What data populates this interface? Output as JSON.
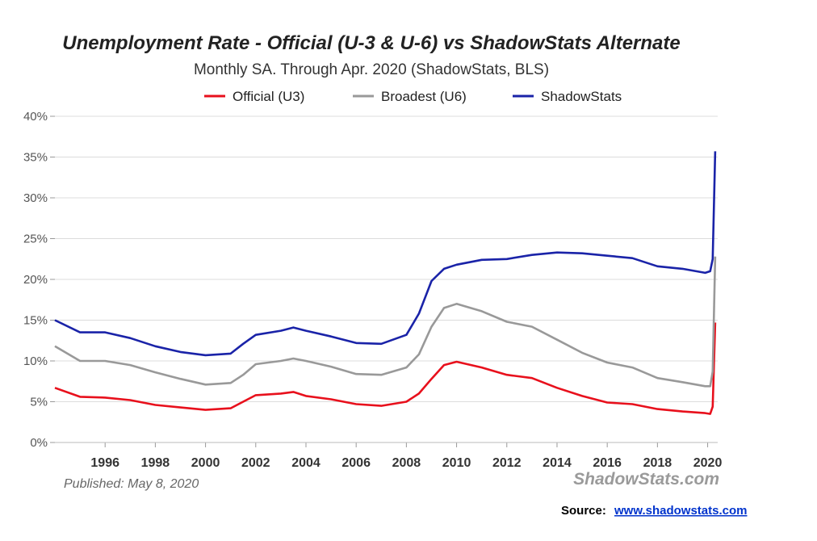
{
  "title": "Unemployment Rate - Official (U-3 & U-6) vs ShadowStats Alternate",
  "subtitle": "Monthly SA. Through Apr. 2020  (ShadowStats, BLS)",
  "published": "Published: May 8, 2020",
  "watermark": "ShadowStats.com",
  "source": {
    "label": "Source:",
    "link": "www.shadowstats.com"
  },
  "chart_data": {
    "type": "line",
    "title": "Unemployment Rate - Official (U-3 & U-6) vs ShadowStats Alternate",
    "subtitle": "Monthly SA. Through Apr. 2020  (ShadowStats, BLS)",
    "xlabel": "",
    "ylabel": "",
    "xlim": [
      1994.0,
      2020.4
    ],
    "ylim": [
      0,
      40
    ],
    "y_ticks": [
      "0%",
      "5%",
      "10%",
      "15%",
      "20%",
      "25%",
      "30%",
      "35%",
      "40%"
    ],
    "x_ticks": [
      "1996",
      "1998",
      "2000",
      "2002",
      "2004",
      "2006",
      "2008",
      "2010",
      "2012",
      "2014",
      "2016",
      "2018",
      "2020"
    ],
    "grid": true,
    "legend_position": "top-center",
    "series": [
      {
        "name": "Official (U3)",
        "color": "#e8101c",
        "points": [
          [
            1994.0,
            6.7
          ],
          [
            1995.0,
            5.6
          ],
          [
            1996.0,
            5.5
          ],
          [
            1997.0,
            5.2
          ],
          [
            1998.0,
            4.6
          ],
          [
            1999.0,
            4.3
          ],
          [
            2000.0,
            4.0
          ],
          [
            2001.0,
            4.2
          ],
          [
            2001.5,
            5.0
          ],
          [
            2002.0,
            5.8
          ],
          [
            2003.0,
            6.0
          ],
          [
            2003.5,
            6.2
          ],
          [
            2004.0,
            5.7
          ],
          [
            2005.0,
            5.3
          ],
          [
            2006.0,
            4.7
          ],
          [
            2007.0,
            4.5
          ],
          [
            2008.0,
            5.0
          ],
          [
            2008.5,
            6.0
          ],
          [
            2009.0,
            7.8
          ],
          [
            2009.5,
            9.5
          ],
          [
            2010.0,
            9.9
          ],
          [
            2011.0,
            9.2
          ],
          [
            2012.0,
            8.3
          ],
          [
            2013.0,
            7.9
          ],
          [
            2014.0,
            6.7
          ],
          [
            2015.0,
            5.7
          ],
          [
            2016.0,
            4.9
          ],
          [
            2017.0,
            4.7
          ],
          [
            2018.0,
            4.1
          ],
          [
            2019.0,
            3.8
          ],
          [
            2019.9,
            3.6
          ],
          [
            2020.1,
            3.5
          ],
          [
            2020.2,
            4.4
          ],
          [
            2020.3,
            14.7
          ]
        ]
      },
      {
        "name": "Broadest (U6)",
        "color": "#999999",
        "points": [
          [
            1994.0,
            11.8
          ],
          [
            1995.0,
            10.0
          ],
          [
            1996.0,
            10.0
          ],
          [
            1997.0,
            9.5
          ],
          [
            1998.0,
            8.6
          ],
          [
            1999.0,
            7.8
          ],
          [
            2000.0,
            7.1
          ],
          [
            2001.0,
            7.3
          ],
          [
            2001.5,
            8.3
          ],
          [
            2002.0,
            9.6
          ],
          [
            2003.0,
            10.0
          ],
          [
            2003.5,
            10.3
          ],
          [
            2004.0,
            10.0
          ],
          [
            2005.0,
            9.3
          ],
          [
            2006.0,
            8.4
          ],
          [
            2007.0,
            8.3
          ],
          [
            2008.0,
            9.2
          ],
          [
            2008.5,
            10.8
          ],
          [
            2009.0,
            14.2
          ],
          [
            2009.5,
            16.5
          ],
          [
            2010.0,
            17.0
          ],
          [
            2011.0,
            16.1
          ],
          [
            2012.0,
            14.8
          ],
          [
            2013.0,
            14.2
          ],
          [
            2014.0,
            12.6
          ],
          [
            2015.0,
            11.0
          ],
          [
            2016.0,
            9.8
          ],
          [
            2017.0,
            9.2
          ],
          [
            2018.0,
            7.9
          ],
          [
            2019.0,
            7.4
          ],
          [
            2019.9,
            6.9
          ],
          [
            2020.1,
            6.9
          ],
          [
            2020.2,
            8.7
          ],
          [
            2020.3,
            22.8
          ]
        ]
      },
      {
        "name": "ShadowStats",
        "color": "#1a23a8",
        "points": [
          [
            1994.0,
            15.0
          ],
          [
            1995.0,
            13.5
          ],
          [
            1996.0,
            13.5
          ],
          [
            1997.0,
            12.8
          ],
          [
            1998.0,
            11.8
          ],
          [
            1999.0,
            11.1
          ],
          [
            2000.0,
            10.7
          ],
          [
            2001.0,
            10.9
          ],
          [
            2001.5,
            12.1
          ],
          [
            2002.0,
            13.2
          ],
          [
            2003.0,
            13.7
          ],
          [
            2003.5,
            14.1
          ],
          [
            2004.0,
            13.7
          ],
          [
            2005.0,
            13.0
          ],
          [
            2006.0,
            12.2
          ],
          [
            2007.0,
            12.1
          ],
          [
            2008.0,
            13.2
          ],
          [
            2008.5,
            15.8
          ],
          [
            2009.0,
            19.8
          ],
          [
            2009.5,
            21.3
          ],
          [
            2010.0,
            21.8
          ],
          [
            2011.0,
            22.4
          ],
          [
            2012.0,
            22.5
          ],
          [
            2013.0,
            23.0
          ],
          [
            2014.0,
            23.3
          ],
          [
            2015.0,
            23.2
          ],
          [
            2016.0,
            22.9
          ],
          [
            2017.0,
            22.6
          ],
          [
            2018.0,
            21.6
          ],
          [
            2019.0,
            21.3
          ],
          [
            2019.9,
            20.8
          ],
          [
            2020.1,
            21.0
          ],
          [
            2020.2,
            22.5
          ],
          [
            2020.3,
            35.7
          ]
        ]
      }
    ]
  }
}
